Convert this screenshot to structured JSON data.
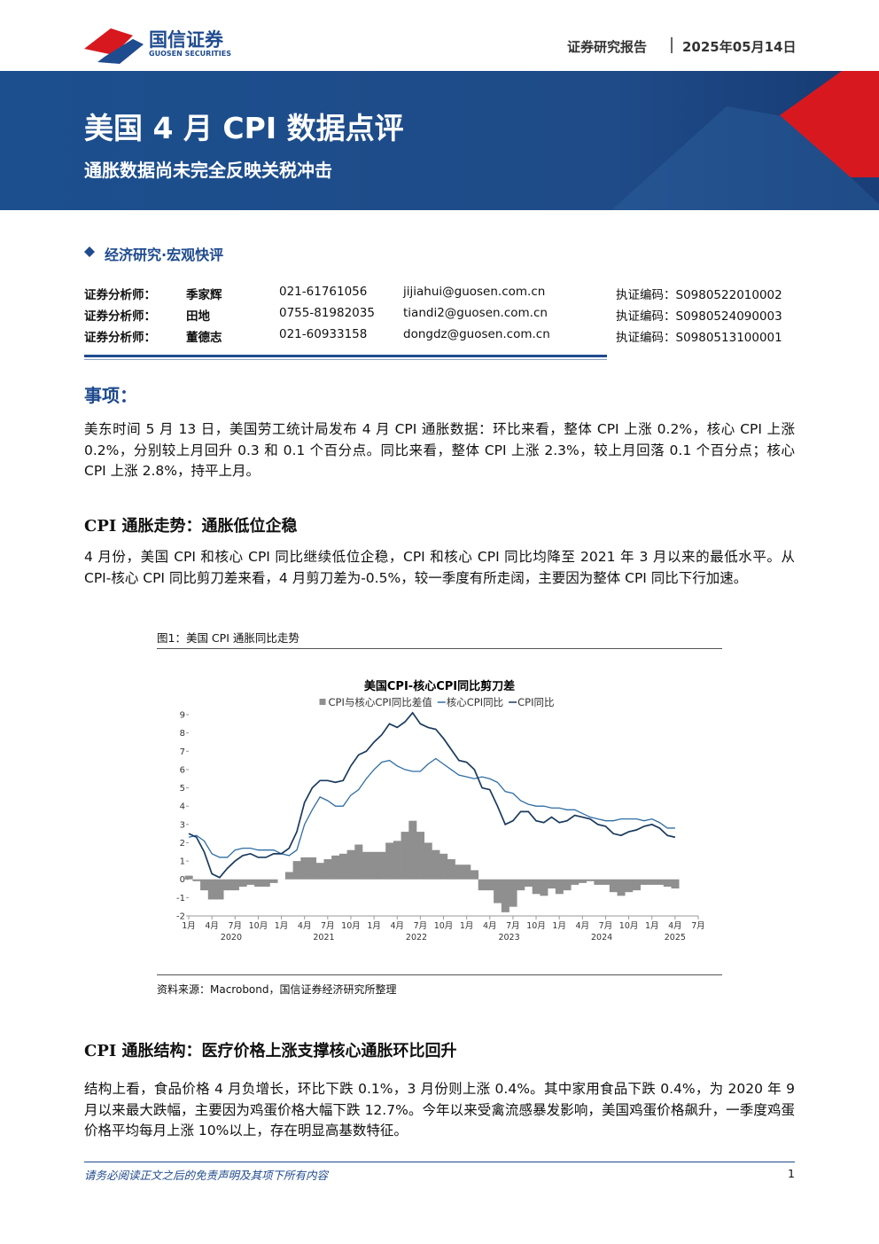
{
  "header": {
    "logo_cn": "国信证券",
    "logo_en": "GUOSEN SECURITIES",
    "report_type": "证券研究报告",
    "date": "2025年05月14日"
  },
  "banner": {
    "title": "美国 4 月 CPI 数据点评",
    "subtitle": "通胀数据尚未完全反映关税冲击"
  },
  "category": "经济研究·宏观快评",
  "analysts": [
    [
      "证券分析师：",
      "季家辉",
      "021-61761056",
      "jijiahui@guosen.com.cn",
      "执证编码：S0980522010002"
    ],
    [
      "证券分析师：",
      "田地",
      "0755-81982035",
      "tiandi2@guosen.com.cn",
      "执证编码：S0980524090003"
    ],
    [
      "证券分析师：",
      "董德志",
      "021-60933158",
      "dongdz@guosen.com.cn",
      "执证编码：S0980513100001"
    ]
  ],
  "sections": [
    {
      "heading": "事项：",
      "paragraphs": [
        "美东时间 5 月 13 日，美国劳工统计局发布 4 月 CPI 通胀数据：环比来看，整体 CPI 上涨 0.2%，核心 CPI 上涨 0.2%，分别较上月回升 0.3 和 0.1 个百分点。同比来看，整体 CPI 上涨 2.3%，较上月回落 0.1 个百分点；核心 CPI 上涨 2.8%，持平上月。"
      ]
    },
    {
      "heading": "CPI 通胀走势：通胀低位企稳",
      "paragraphs": [
        "4 月份，美国 CPI 和核心 CPI 同比继续低位企稳，CPI 和核心 CPI 同比均降至 2021 年 3 月以来的最低水平。从 CPI-核心 CPI 同比剪刀差来看，4 月剪刀差为-0.5%，较一季度有所走阔，主要因为整体 CPI 同比下行加速。"
      ]
    },
    {
      "heading": "CPI 通胀结构：医疗价格上涨支撑核心通胀环比回升",
      "paragraphs": [
        "结构上看，食品价格 4 月负增长，环比下跌 0.1%，3 月份则上涨 0.4%。其中家用食品下跌 0.4%，为 2020 年 9 月以来最大跌幅，主要因为鸡蛋价格大幅下跌 12.7%。今年以来受禽流感暴发影响，美国鸡蛋价格飙升，一季度鸡蛋价格平均每月上涨 10%以上，存在明显高基数特征。"
      ]
    }
  ],
  "figure": {
    "caption": "图1：美国 CPI 通胀同比走势",
    "source": "资料来源：Macrobond，国信证券经济研究所整理"
  },
  "chart_data": {
    "type": "line",
    "title": "美国CPI-核心CPI同比剪刀差",
    "x": [
      "2020-01",
      "2020-02",
      "2020-03",
      "2020-04",
      "2020-05",
      "2020-06",
      "2020-07",
      "2020-08",
      "2020-09",
      "2020-10",
      "2020-11",
      "2020-12",
      "2021-01",
      "2021-02",
      "2021-03",
      "2021-04",
      "2021-05",
      "2021-06",
      "2021-07",
      "2021-08",
      "2021-09",
      "2021-10",
      "2021-11",
      "2021-12",
      "2022-01",
      "2022-02",
      "2022-03",
      "2022-04",
      "2022-05",
      "2022-06",
      "2022-07",
      "2022-08",
      "2022-09",
      "2022-10",
      "2022-11",
      "2022-12",
      "2023-01",
      "2023-02",
      "2023-03",
      "2023-04",
      "2023-05",
      "2023-06",
      "2023-07",
      "2023-08",
      "2023-09",
      "2023-10",
      "2023-11",
      "2023-12",
      "2024-01",
      "2024-02",
      "2024-03",
      "2024-04",
      "2024-05",
      "2024-06",
      "2024-07",
      "2024-08",
      "2024-09",
      "2024-10",
      "2024-11",
      "2024-12",
      "2025-01",
      "2025-02",
      "2025-03",
      "2025-04",
      "2025-05",
      "2025-06",
      "2025-07"
    ],
    "xticks": [
      {
        "value": "2020-01",
        "label": "1月"
      },
      {
        "value": "2020-04",
        "label": "4月"
      },
      {
        "value": "2020-07",
        "label": "7月"
      },
      {
        "value": "2020-10",
        "label": "10月"
      },
      {
        "value": "2021-01",
        "label": "1月"
      },
      {
        "value": "2021-04",
        "label": "4月"
      },
      {
        "value": "2021-07",
        "label": "7月"
      },
      {
        "value": "2021-10",
        "label": "10月"
      },
      {
        "value": "2022-01",
        "label": "1月"
      },
      {
        "value": "2022-04",
        "label": "4月"
      },
      {
        "value": "2022-07",
        "label": "7月"
      },
      {
        "value": "2022-10",
        "label": "10月"
      },
      {
        "value": "2023-01",
        "label": "1月"
      },
      {
        "value": "2023-04",
        "label": "4月"
      },
      {
        "value": "2023-07",
        "label": "7月"
      },
      {
        "value": "2023-10",
        "label": "10月"
      },
      {
        "value": "2024-01",
        "label": "1月"
      },
      {
        "value": "2024-04",
        "label": "4月"
      },
      {
        "value": "2024-07",
        "label": "7月"
      },
      {
        "value": "2024-10",
        "label": "10月"
      },
      {
        "value": "2025-01",
        "label": "1月"
      },
      {
        "value": "2025-04",
        "label": "4月"
      },
      {
        "value": "2025-07",
        "label": "7月"
      }
    ],
    "years": [
      "2020",
      "2021",
      "2022",
      "2023",
      "2024",
      "2025"
    ],
    "ylim": [
      -2,
      9
    ],
    "yticks": [
      -2,
      -1,
      0,
      1,
      2,
      3,
      4,
      5,
      6,
      7,
      8,
      9
    ],
    "series": [
      {
        "name": "CPI与核心CPI同比差值",
        "color": "#8f8f8f",
        "style": "bar",
        "values": [
          0.2,
          -0.1,
          -0.6,
          -1.1,
          -1.1,
          -0.6,
          -0.6,
          -0.4,
          -0.3,
          -0.4,
          -0.4,
          -0.2,
          0.0,
          0.4,
          1.0,
          1.2,
          1.2,
          0.9,
          1.1,
          1.3,
          1.4,
          1.6,
          1.9,
          1.5,
          1.5,
          1.5,
          2.0,
          2.1,
          2.6,
          3.2,
          2.6,
          2.0,
          1.6,
          1.4,
          1.1,
          0.8,
          0.8,
          0.5,
          -0.6,
          -0.6,
          -1.3,
          -1.8,
          -1.5,
          -0.6,
          -0.4,
          -0.8,
          -0.9,
          -0.5,
          -0.8,
          -0.6,
          -0.3,
          -0.2,
          -0.1,
          -0.3,
          -0.3,
          -0.7,
          -0.9,
          -0.7,
          -0.6,
          -0.3,
          -0.3,
          -0.3,
          -0.4,
          -0.5,
          null,
          null,
          null
        ]
      },
      {
        "name": "核心CPI同比",
        "color": "#2e6da4",
        "style": "line",
        "values": [
          2.3,
          2.4,
          2.1,
          1.4,
          1.2,
          1.2,
          1.6,
          1.7,
          1.7,
          1.6,
          1.6,
          1.6,
          1.4,
          1.3,
          1.6,
          3.0,
          3.8,
          4.5,
          4.3,
          4.0,
          4.0,
          4.6,
          4.9,
          5.5,
          6.0,
          6.4,
          6.5,
          6.2,
          6.0,
          5.9,
          5.9,
          6.3,
          6.6,
          6.3,
          6.0,
          5.7,
          5.6,
          5.5,
          5.6,
          5.5,
          5.3,
          4.8,
          4.7,
          4.3,
          4.1,
          4.0,
          4.0,
          3.9,
          3.9,
          3.8,
          3.8,
          3.6,
          3.4,
          3.3,
          3.2,
          3.2,
          3.3,
          3.3,
          3.3,
          3.2,
          3.3,
          3.1,
          2.8,
          2.8,
          null,
          null,
          null
        ]
      },
      {
        "name": "CPI同比",
        "color": "#1a3a5e",
        "style": "line",
        "values": [
          2.5,
          2.3,
          1.5,
          0.3,
          0.1,
          0.6,
          1.0,
          1.3,
          1.4,
          1.2,
          1.2,
          1.4,
          1.4,
          1.7,
          2.6,
          4.2,
          5.0,
          5.4,
          5.4,
          5.3,
          5.4,
          6.2,
          6.8,
          7.0,
          7.5,
          7.9,
          8.5,
          8.3,
          8.6,
          9.1,
          8.5,
          8.3,
          8.2,
          7.7,
          7.1,
          6.5,
          6.4,
          6.0,
          5.0,
          4.9,
          4.0,
          3.0,
          3.2,
          3.7,
          3.7,
          3.2,
          3.1,
          3.4,
          3.1,
          3.2,
          3.5,
          3.4,
          3.3,
          3.0,
          2.9,
          2.5,
          2.4,
          2.6,
          2.7,
          2.9,
          3.0,
          2.8,
          2.4,
          2.3,
          null,
          null,
          null
        ]
      }
    ]
  },
  "footer": {
    "disclaimer": "请务必阅读正文之后的免责声明及其项下所有内容",
    "page": 1
  }
}
